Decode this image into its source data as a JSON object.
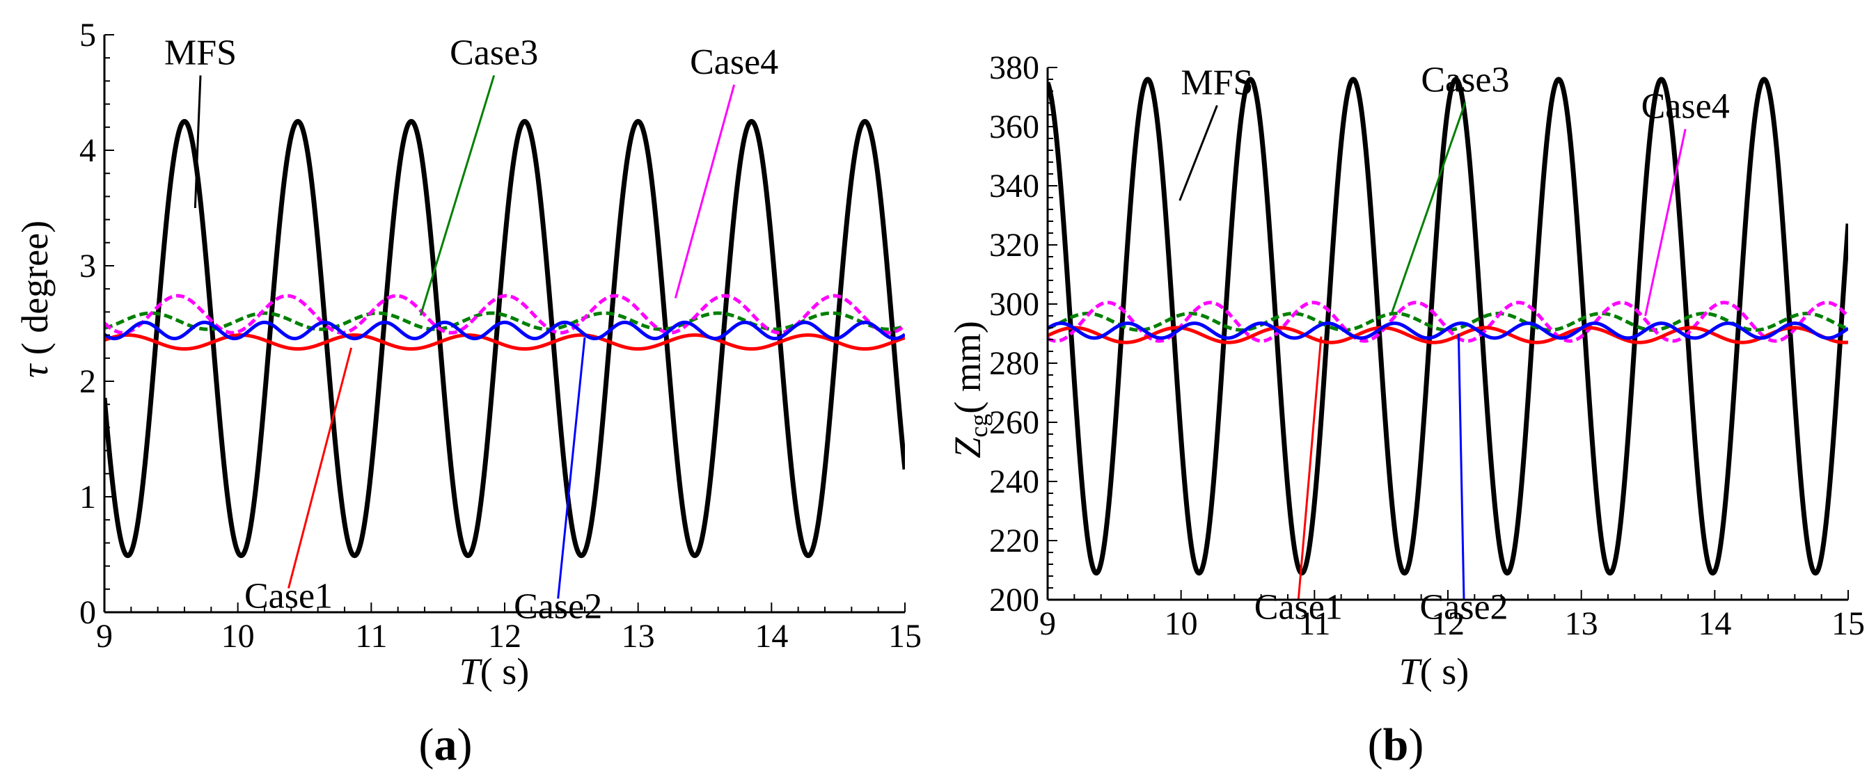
{
  "figure": {
    "label_a": "a",
    "label_b": "b"
  },
  "colors": {
    "MFS": "#000000",
    "Case1": "#ff0000",
    "Case2": "#0000ff",
    "Case3": "#008000",
    "Case4": "#ff00ff"
  },
  "chart_data": [
    {
      "id": "a",
      "type": "line",
      "title": "",
      "xlabel": "T( s)",
      "xlabel_var": "T",
      "xlabel_unit": "( s)",
      "ylabel": "τ ( degree)",
      "ylabel_var": "τ",
      "ylabel_unit": "( degree)",
      "xlim": [
        9,
        15
      ],
      "ylim": [
        0,
        5
      ],
      "xticks": [
        9,
        10,
        11,
        12,
        13,
        14,
        15
      ],
      "yticks": [
        0,
        1,
        2,
        3,
        4,
        5
      ],
      "grid": false,
      "series": [
        {
          "name": "MFS",
          "mean": 2.37,
          "amp": 1.88,
          "period": 0.85,
          "phase": 9.175,
          "sign": -1,
          "dash": false,
          "width": 7,
          "annotation": {
            "text": "MFS",
            "label_at": [
              9.72,
              4.72
            ],
            "point_at": [
              9.68,
              3.5
            ]
          }
        },
        {
          "name": "Case1",
          "mean": 2.34,
          "amp": 0.06,
          "period": 0.85,
          "phase": 9.175,
          "sign": 1,
          "dash": false,
          "width": 5,
          "annotation": {
            "text": "Case1",
            "label_at": [
              10.38,
              0.28
            ],
            "point_at": [
              10.85,
              2.29
            ]
          }
        },
        {
          "name": "Case2",
          "mean": 2.44,
          "amp": 0.07,
          "period": 0.45,
          "phase": 9.3,
          "sign": 1,
          "dash": false,
          "width": 5,
          "annotation": {
            "text": "Case2",
            "label_at": [
              12.4,
              0.19
            ],
            "point_at": [
              12.6,
              2.38
            ]
          }
        },
        {
          "name": "Case3",
          "mean": 2.52,
          "amp": 0.07,
          "period": 0.85,
          "phase": 9.35,
          "sign": 1,
          "dash": true,
          "width": 5,
          "annotation": {
            "text": "Case3",
            "label_at": [
              11.92,
              4.72
            ],
            "point_at": [
              11.37,
              2.57
            ]
          }
        },
        {
          "name": "Case4",
          "mean": 2.58,
          "amp": 0.16,
          "period": 0.82,
          "phase": 9.55,
          "sign": 1,
          "dash": true,
          "width": 5,
          "annotation": {
            "text": "Case4",
            "label_at": [
              13.72,
              4.64
            ],
            "point_at": [
              13.28,
              2.72
            ]
          }
        }
      ]
    },
    {
      "id": "b",
      "type": "line",
      "title": "",
      "xlabel": "T( s)",
      "xlabel_var": "T",
      "xlabel_unit": "( s)",
      "ylabel": "Zcg( mm)",
      "ylabel_var": "Z",
      "ylabel_sub": "cg",
      "ylabel_unit": "( mm)",
      "xlim": [
        9,
        15
      ],
      "ylim": [
        200,
        380
      ],
      "xticks": [
        9,
        10,
        11,
        12,
        13,
        14,
        15
      ],
      "yticks": [
        200,
        220,
        240,
        260,
        280,
        300,
        320,
        340,
        360,
        380
      ],
      "grid": false,
      "series": [
        {
          "name": "MFS",
          "mean": 292.5,
          "amp": 83.5,
          "period": 0.77,
          "phase": 9.365,
          "sign": -1,
          "dash": false,
          "width": 7,
          "annotation": {
            "text": "MFS",
            "label_at": [
              10.27,
              370
            ],
            "point_at": [
              9.99,
              335
            ]
          }
        },
        {
          "name": "Case1",
          "mean": 289.5,
          "amp": 2.5,
          "period": 0.77,
          "phase": 9.2,
          "sign": 1,
          "dash": false,
          "width": 5,
          "annotation": {
            "text": "Case1",
            "label_at": [
              10.88,
              203
            ],
            "point_at": [
              11.05,
              289
            ]
          }
        },
        {
          "name": "Case2",
          "mean": 291,
          "amp": 2.5,
          "period": 0.5,
          "phase": 9.1,
          "sign": 1,
          "dash": false,
          "width": 5,
          "annotation": {
            "text": "Case2",
            "label_at": [
              12.12,
              203
            ],
            "point_at": [
              12.08,
              290
            ]
          }
        },
        {
          "name": "Case3",
          "mean": 294,
          "amp": 2.8,
          "period": 0.77,
          "phase": 9.3,
          "sign": 1,
          "dash": true,
          "width": 5,
          "annotation": {
            "text": "Case3",
            "label_at": [
              12.13,
              371
            ],
            "point_at": [
              11.58,
              297
            ]
          }
        },
        {
          "name": "Case4",
          "mean": 294,
          "amp": 6.5,
          "period": 0.77,
          "phase": 9.45,
          "sign": 1,
          "dash": true,
          "width": 5,
          "annotation": {
            "text": "Case4",
            "label_at": [
              13.78,
              362
            ],
            "point_at": [
              13.48,
              296
            ]
          }
        }
      ]
    }
  ]
}
